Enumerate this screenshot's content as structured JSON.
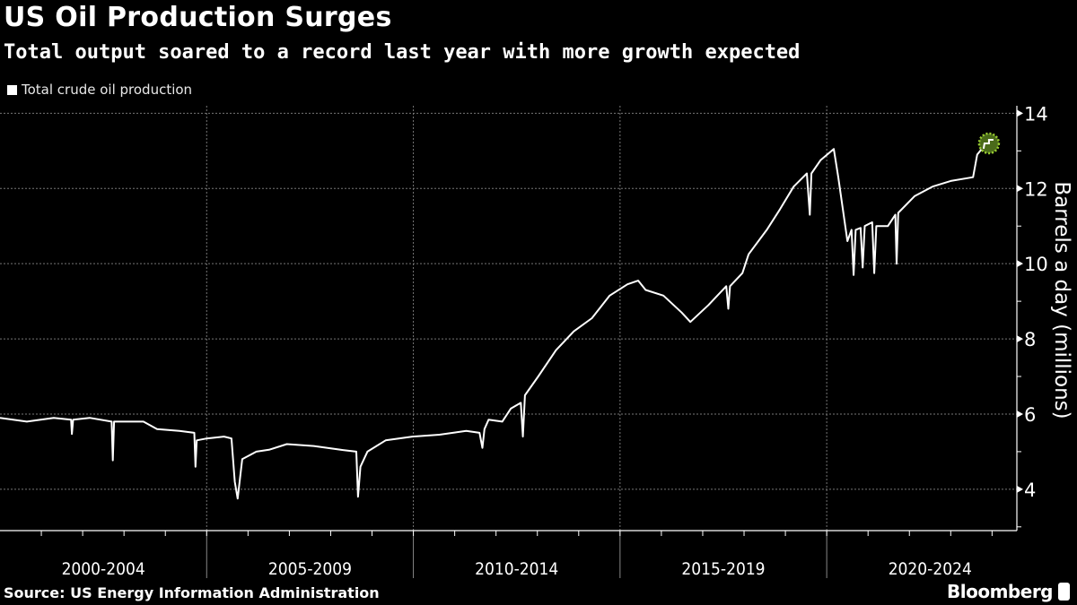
{
  "header": {
    "title": "US Oil Production Surges",
    "subtitle": "Total output soared to a record last year with more growth expected"
  },
  "footer": {
    "source": "Source: US Energy Information Administration",
    "brand": "Bloomberg"
  },
  "colors": {
    "background": "#000000",
    "line": "#ffffff",
    "highlight": "#4a6a1a",
    "highlight_ring": "#9acd32"
  },
  "chart_data": {
    "type": "line",
    "title": "US Oil Production Surges",
    "subtitle": "Total output soared to a record last year with more growth expected",
    "xlabel": "",
    "ylabel": "Barrels a day (millions)",
    "xlim": [
      2000,
      2024.6
    ],
    "ylim": [
      2.9,
      14.2
    ],
    "y_ticks": [
      4,
      6,
      8,
      10,
      12,
      14
    ],
    "x_tick_labels": [
      "2000-2004",
      "2005-2009",
      "2010-2014",
      "2015-2019",
      "2020-2024"
    ],
    "x_label_ranges": [
      [
        2000,
        2005
      ],
      [
        2005,
        2010
      ],
      [
        2010,
        2015
      ],
      [
        2015,
        2020
      ],
      [
        2020,
        2025
      ]
    ],
    "grid": true,
    "legend": "top-left",
    "y_axis_side": "right",
    "highlight_last_point": true,
    "series": [
      {
        "name": "Total crude oil production",
        "points": [
          [
            2000.0,
            5.9
          ],
          [
            2000.65,
            5.8
          ],
          [
            2001.3,
            5.9
          ],
          [
            2001.72,
            5.85
          ],
          [
            2001.74,
            5.47
          ],
          [
            2001.77,
            5.85
          ],
          [
            2002.17,
            5.9
          ],
          [
            2002.7,
            5.8
          ],
          [
            2002.73,
            4.77
          ],
          [
            2002.76,
            5.8
          ],
          [
            2003.47,
            5.8
          ],
          [
            2003.8,
            5.6
          ],
          [
            2004.34,
            5.55
          ],
          [
            2004.7,
            5.5
          ],
          [
            2004.73,
            4.6
          ],
          [
            2004.76,
            5.3
          ],
          [
            2005.0,
            5.35
          ],
          [
            2005.42,
            5.4
          ],
          [
            2005.6,
            5.35
          ],
          [
            2005.68,
            4.2
          ],
          [
            2005.75,
            3.75
          ],
          [
            2005.86,
            4.8
          ],
          [
            2006.2,
            5.0
          ],
          [
            2006.51,
            5.05
          ],
          [
            2006.94,
            5.2
          ],
          [
            2007.59,
            5.15
          ],
          [
            2008.24,
            5.05
          ],
          [
            2008.62,
            5.0
          ],
          [
            2008.66,
            3.8
          ],
          [
            2008.72,
            4.6
          ],
          [
            2008.89,
            5.0
          ],
          [
            2009.33,
            5.3
          ],
          [
            2009.98,
            5.4
          ],
          [
            2010.63,
            5.45
          ],
          [
            2011.28,
            5.55
          ],
          [
            2011.6,
            5.5
          ],
          [
            2011.67,
            5.1
          ],
          [
            2011.72,
            5.6
          ],
          [
            2011.82,
            5.85
          ],
          [
            2012.15,
            5.8
          ],
          [
            2012.36,
            6.15
          ],
          [
            2012.6,
            6.3
          ],
          [
            2012.65,
            5.4
          ],
          [
            2012.7,
            6.5
          ],
          [
            2013.02,
            7.0
          ],
          [
            2013.45,
            7.7
          ],
          [
            2013.88,
            8.2
          ],
          [
            2014.32,
            8.55
          ],
          [
            2014.75,
            9.15
          ],
          [
            2015.18,
            9.45
          ],
          [
            2015.44,
            9.55
          ],
          [
            2015.62,
            9.3
          ],
          [
            2016.05,
            9.15
          ],
          [
            2016.49,
            8.7
          ],
          [
            2016.7,
            8.45
          ],
          [
            2017.14,
            8.9
          ],
          [
            2017.57,
            9.4
          ],
          [
            2017.62,
            8.8
          ],
          [
            2017.66,
            9.4
          ],
          [
            2017.96,
            9.75
          ],
          [
            2018.11,
            10.25
          ],
          [
            2018.55,
            10.9
          ],
          [
            2018.87,
            11.45
          ],
          [
            2019.2,
            12.05
          ],
          [
            2019.52,
            12.4
          ],
          [
            2019.59,
            11.3
          ],
          [
            2019.63,
            12.4
          ],
          [
            2019.85,
            12.75
          ],
          [
            2020.17,
            13.05
          ],
          [
            2020.28,
            12.3
          ],
          [
            2020.5,
            10.6
          ],
          [
            2020.6,
            10.9
          ],
          [
            2020.65,
            9.7
          ],
          [
            2020.7,
            10.9
          ],
          [
            2020.82,
            10.95
          ],
          [
            2020.87,
            9.9
          ],
          [
            2020.92,
            11.0
          ],
          [
            2021.1,
            11.1
          ],
          [
            2021.15,
            9.75
          ],
          [
            2021.2,
            11.0
          ],
          [
            2021.48,
            11.0
          ],
          [
            2021.66,
            11.3
          ],
          [
            2021.69,
            10.0
          ],
          [
            2021.73,
            11.35
          ],
          [
            2022.13,
            11.8
          ],
          [
            2022.56,
            12.05
          ],
          [
            2023.0,
            12.2
          ],
          [
            2023.54,
            12.3
          ],
          [
            2023.64,
            12.9
          ],
          [
            2023.86,
            13.2
          ]
        ]
      }
    ]
  }
}
